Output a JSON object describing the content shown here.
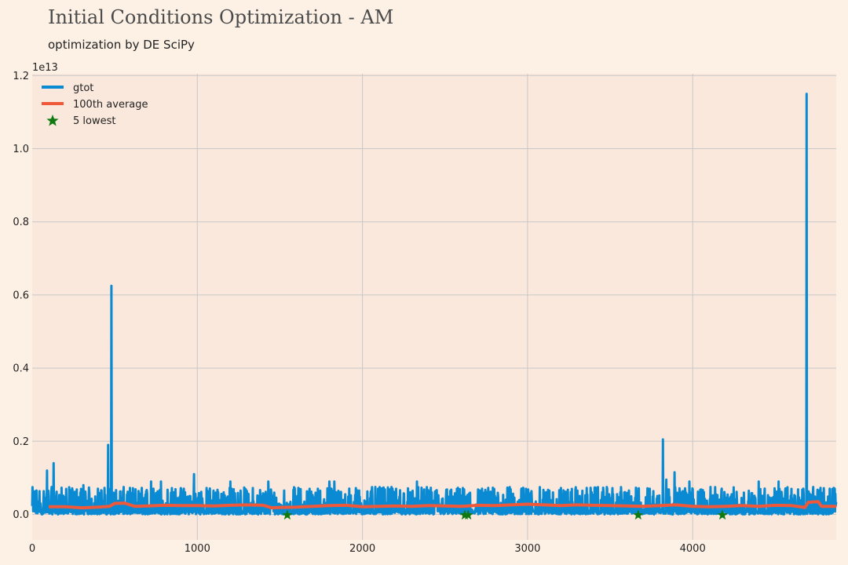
{
  "chart_data": {
    "type": "line",
    "title": "Initial Conditions Optimization - AM",
    "subtitle": "optimization by DE SciPy",
    "offset_label": "1e13",
    "xlabel": "",
    "ylabel": "",
    "xlim": [
      0,
      4870
    ],
    "ylim": [
      -0.07,
      1.2
    ],
    "y_scale_factor": 10000000000000.0,
    "grid": true,
    "legend_position": "top-left",
    "x_ticks": [
      0,
      1000,
      2000,
      3000,
      4000
    ],
    "x_tick_labels": [
      "0",
      "1000",
      "2000",
      "3000",
      "4000"
    ],
    "y_ticks": [
      0.0,
      0.2,
      0.4,
      0.6,
      0.8,
      1.0,
      1.2
    ],
    "y_tick_labels": [
      "0.0",
      "0.2",
      "0.4",
      "0.6",
      "0.8",
      "1.0",
      "1.2"
    ],
    "colors": {
      "background": "#fdf1e6",
      "plot_background": "#fae8dc",
      "grid": "#c8c8c8",
      "gtot": "#0a8ad2",
      "average": "#f0583a",
      "lowest": "#107a10"
    },
    "series": [
      {
        "name": "gtot",
        "kind": "line",
        "baseline_band": [
          0.0,
          0.075
        ],
        "spikes": [
          {
            "x": 20,
            "y": 0.06
          },
          {
            "x": 90,
            "y": 0.12
          },
          {
            "x": 130,
            "y": 0.14
          },
          {
            "x": 310,
            "y": 0.08
          },
          {
            "x": 460,
            "y": 0.19
          },
          {
            "x": 480,
            "y": 0.625
          },
          {
            "x": 720,
            "y": 0.09
          },
          {
            "x": 780,
            "y": 0.09
          },
          {
            "x": 980,
            "y": 0.11
          },
          {
            "x": 1200,
            "y": 0.09
          },
          {
            "x": 1430,
            "y": 0.09
          },
          {
            "x": 1800,
            "y": 0.09
          },
          {
            "x": 1830,
            "y": 0.09
          },
          {
            "x": 2330,
            "y": 0.09
          },
          {
            "x": 3820,
            "y": 0.205
          },
          {
            "x": 3840,
            "y": 0.095
          },
          {
            "x": 3890,
            "y": 0.115
          },
          {
            "x": 3980,
            "y": 0.09
          },
          {
            "x": 4400,
            "y": 0.09
          },
          {
            "x": 4520,
            "y": 0.09
          },
          {
            "x": 4690,
            "y": 1.15
          }
        ]
      },
      {
        "name": "100th average",
        "kind": "line",
        "x": [
          100,
          200,
          300,
          400,
          470,
          500,
          560,
          620,
          700,
          800,
          900,
          1000,
          1100,
          1200,
          1300,
          1400,
          1450,
          1500,
          1600,
          1700,
          1800,
          1900,
          2000,
          2100,
          2200,
          2300,
          2400,
          2500,
          2600,
          2700,
          2800,
          2900,
          3000,
          3100,
          3200,
          3300,
          3400,
          3500,
          3600,
          3700,
          3800,
          3900,
          4000,
          4100,
          4200,
          4300,
          4400,
          4500,
          4600,
          4680,
          4700,
          4760,
          4780,
          4870
        ],
        "y": [
          0.021,
          0.021,
          0.018,
          0.02,
          0.022,
          0.03,
          0.031,
          0.022,
          0.023,
          0.025,
          0.024,
          0.024,
          0.023,
          0.025,
          0.026,
          0.025,
          0.018,
          0.019,
          0.02,
          0.022,
          0.024,
          0.025,
          0.021,
          0.022,
          0.023,
          0.022,
          0.024,
          0.023,
          0.022,
          0.025,
          0.024,
          0.026,
          0.028,
          0.026,
          0.024,
          0.026,
          0.025,
          0.024,
          0.023,
          0.022,
          0.024,
          0.026,
          0.022,
          0.021,
          0.022,
          0.024,
          0.022,
          0.025,
          0.024,
          0.019,
          0.033,
          0.035,
          0.022,
          0.022
        ]
      },
      {
        "name": "5 lowest",
        "kind": "scatter",
        "marker": "star",
        "x": [
          1545,
          2620,
          2640,
          3670,
          4180
        ],
        "y": [
          -0.002,
          -0.002,
          -0.002,
          -0.002,
          -0.002
        ]
      }
    ]
  }
}
